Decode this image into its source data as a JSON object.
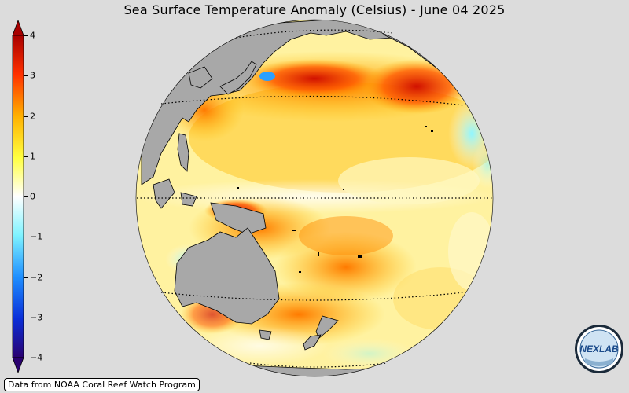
{
  "map": {
    "title": "Sea Surface Temperature Anomaly (Celsius) - June 04 2025",
    "credit": "Data from NOAA Coral Reef Watch Program",
    "logo_text": "NEXLAB",
    "colorbar": {
      "min": -4,
      "max": 4,
      "ticks": [
        "4",
        "3",
        "2",
        "1",
        "0",
        "−1",
        "−2",
        "−3",
        "−4"
      ],
      "colors": [
        "#2a0070",
        "#0a2ed8",
        "#1f8fff",
        "#7ff3ff",
        "#ffffff",
        "#ffff40",
        "#ffb000",
        "#ff3000",
        "#a80000"
      ]
    },
    "colors": {
      "background": "#dcdcdc",
      "land": "#a8a8a8",
      "coast": "#000000",
      "ocean_base": "#fff5a0"
    }
  }
}
